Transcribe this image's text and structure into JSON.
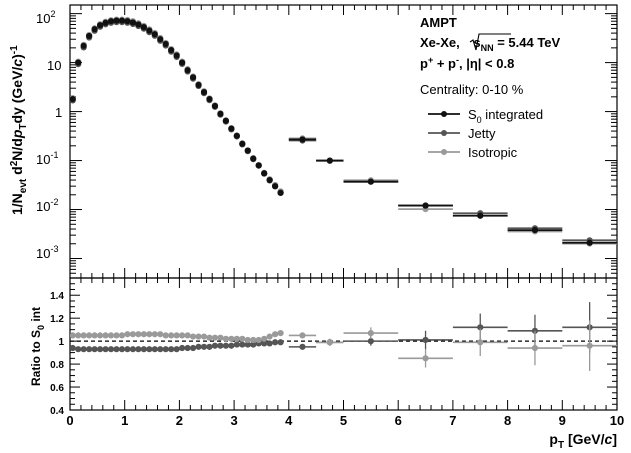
{
  "chart_data": [
    {
      "type": "scatter",
      "panel": "spectrum",
      "yscale": "log",
      "xlim": [
        0,
        10
      ],
      "ylim": [
        0.0004,
        150
      ],
      "ylabel": {
        "p1": "1/N",
        "s1": "evt",
        "p2": " d",
        "s2": "2",
        "p3": "N/d",
        "i1": "p",
        "s3": "T",
        "p4": "dy (GeV/",
        "i2": "c",
        "p5": ")",
        "s4": "-1"
      },
      "ytick_values": [
        0.001,
        0.01,
        0.1,
        1,
        10,
        100
      ],
      "yticks": {
        "v1": {
          "base": "10",
          "exp": "-3"
        },
        "v2": {
          "base": "10",
          "exp": "-2"
        },
        "v3": {
          "base": "10",
          "exp": "-1"
        },
        "v4": {
          "base": "1"
        },
        "v5": {
          "base": "10"
        },
        "v6": {
          "base": "10",
          "exp": "2"
        }
      },
      "annotations": {
        "model": "AMPT",
        "system": {
          "a": "Xe-Xe, ",
          "b": "s",
          "c": "NN",
          "d": " = 5.44 TeV"
        },
        "particles": {
          "a": "p",
          "b": "+",
          "c": " + p",
          "d": "-",
          "e": ", |η| < 0.8"
        },
        "centrality": "Centrality: 0-10 %"
      },
      "legend_position": "right",
      "legend": {
        "s0": {
          "a": "S",
          "b": "0",
          "c": " integrated"
        },
        "jetty": "Jetty",
        "iso": "Isotropic"
      },
      "colors": {
        "s0": "#111111",
        "jetty": "#555555",
        "iso": "#9a9a9a"
      },
      "x": [
        0.05,
        0.15,
        0.25,
        0.35,
        0.45,
        0.55,
        0.65,
        0.75,
        0.85,
        0.95,
        1.05,
        1.15,
        1.25,
        1.35,
        1.45,
        1.55,
        1.65,
        1.75,
        1.85,
        1.95,
        2.05,
        2.15,
        2.25,
        2.35,
        2.45,
        2.55,
        2.65,
        2.75,
        2.85,
        2.95,
        3.05,
        3.15,
        3.25,
        3.35,
        3.45,
        3.55,
        3.65,
        3.75,
        3.85,
        4.25,
        4.75,
        5.5,
        6.5,
        7.5,
        8.5,
        9.5
      ],
      "xerr": [
        0.05,
        0.05,
        0.05,
        0.05,
        0.05,
        0.05,
        0.05,
        0.05,
        0.05,
        0.05,
        0.05,
        0.05,
        0.05,
        0.05,
        0.05,
        0.05,
        0.05,
        0.05,
        0.05,
        0.05,
        0.05,
        0.05,
        0.05,
        0.05,
        0.05,
        0.05,
        0.05,
        0.05,
        0.05,
        0.05,
        0.05,
        0.05,
        0.05,
        0.05,
        0.05,
        0.05,
        0.05,
        0.05,
        0.05,
        0.25,
        0.25,
        0.5,
        0.5,
        0.5,
        0.5,
        0.5
      ],
      "y": [
        1.8,
        10,
        22,
        35,
        48,
        58,
        65,
        70,
        72,
        72,
        70,
        66,
        60,
        53,
        45,
        38,
        30,
        24,
        18,
        14,
        10,
        7,
        5,
        3.5,
        2.5,
        1.8,
        1.3,
        0.9,
        0.65,
        0.45,
        0.32,
        0.22,
        0.16,
        0.11,
        0.08,
        0.055,
        0.04,
        0.03,
        0.022,
        0.27,
        0.1,
        0.037,
        0.012,
        0.0075,
        0.0038,
        0.0021
      ]
    },
    {
      "type": "scatter",
      "panel": "ratio",
      "xlabel": {
        "a": "p",
        "b": "T",
        "c": " [GeV/",
        "d": "c",
        "e": "]"
      },
      "ylabel": {
        "a": "Ratio to S",
        "b": "0",
        "c": " int"
      },
      "xlim": [
        0,
        10
      ],
      "ylim": [
        0.4,
        1.55
      ],
      "reference_line": 1,
      "xticks": [
        "0",
        "1",
        "2",
        "3",
        "4",
        "5",
        "6",
        "7",
        "8",
        "9",
        "10"
      ],
      "yticks": [
        "0.4",
        "0.6",
        "0.8",
        "1",
        "1.2",
        "1.4"
      ],
      "series": [
        {
          "key": "jetty",
          "x": [
            0.05,
            0.15,
            0.25,
            0.35,
            0.45,
            0.55,
            0.65,
            0.75,
            0.85,
            0.95,
            1.05,
            1.15,
            1.25,
            1.35,
            1.45,
            1.55,
            1.65,
            1.75,
            1.85,
            1.95,
            2.05,
            2.15,
            2.25,
            2.35,
            2.45,
            2.55,
            2.65,
            2.75,
            2.85,
            2.95,
            3.05,
            3.15,
            3.25,
            3.35,
            3.45,
            3.55,
            3.65,
            3.75,
            3.85,
            4.25,
            4.75,
            5.5,
            6.5,
            7.5,
            8.5,
            9.5
          ],
          "xerr": [
            0.05,
            0.05,
            0.05,
            0.05,
            0.05,
            0.05,
            0.05,
            0.05,
            0.05,
            0.05,
            0.05,
            0.05,
            0.05,
            0.05,
            0.05,
            0.05,
            0.05,
            0.05,
            0.05,
            0.05,
            0.05,
            0.05,
            0.05,
            0.05,
            0.05,
            0.05,
            0.05,
            0.05,
            0.05,
            0.05,
            0.05,
            0.05,
            0.05,
            0.05,
            0.05,
            0.05,
            0.05,
            0.05,
            0.05,
            0.25,
            0.25,
            0.5,
            0.5,
            0.5,
            0.5,
            0.5
          ],
          "y": [
            0.94,
            0.93,
            0.93,
            0.93,
            0.93,
            0.93,
            0.93,
            0.93,
            0.93,
            0.93,
            0.93,
            0.93,
            0.93,
            0.93,
            0.93,
            0.93,
            0.93,
            0.93,
            0.93,
            0.93,
            0.94,
            0.94,
            0.94,
            0.95,
            0.95,
            0.95,
            0.96,
            0.96,
            0.96,
            0.96,
            0.97,
            0.97,
            0.97,
            0.97,
            0.98,
            0.98,
            0.98,
            0.99,
            0.99,
            0.95,
            0.99,
            1.0,
            1.01,
            1.12,
            1.09,
            1.12
          ],
          "yerr": [
            0.01,
            0.01,
            0.01,
            0.01,
            0.01,
            0.01,
            0.01,
            0.01,
            0.01,
            0.01,
            0.01,
            0.01,
            0.01,
            0.01,
            0.01,
            0.01,
            0.01,
            0.01,
            0.01,
            0.01,
            0.01,
            0.01,
            0.01,
            0.01,
            0.01,
            0.01,
            0.01,
            0.01,
            0.01,
            0.01,
            0.01,
            0.01,
            0.015,
            0.015,
            0.015,
            0.015,
            0.02,
            0.02,
            0.02,
            0.02,
            0.03,
            0.04,
            0.08,
            0.12,
            0.14,
            0.22
          ]
        },
        {
          "key": "iso",
          "x": [
            0.05,
            0.15,
            0.25,
            0.35,
            0.45,
            0.55,
            0.65,
            0.75,
            0.85,
            0.95,
            1.05,
            1.15,
            1.25,
            1.35,
            1.45,
            1.55,
            1.65,
            1.75,
            1.85,
            1.95,
            2.05,
            2.15,
            2.25,
            2.35,
            2.45,
            2.55,
            2.65,
            2.75,
            2.85,
            2.95,
            3.05,
            3.15,
            3.25,
            3.35,
            3.45,
            3.55,
            3.65,
            3.75,
            3.85,
            4.25,
            4.75,
            5.5,
            6.5,
            7.5,
            8.5,
            9.5
          ],
          "xerr": [
            0.05,
            0.05,
            0.05,
            0.05,
            0.05,
            0.05,
            0.05,
            0.05,
            0.05,
            0.05,
            0.05,
            0.05,
            0.05,
            0.05,
            0.05,
            0.05,
            0.05,
            0.05,
            0.05,
            0.05,
            0.05,
            0.05,
            0.05,
            0.05,
            0.05,
            0.05,
            0.05,
            0.05,
            0.05,
            0.05,
            0.05,
            0.05,
            0.05,
            0.05,
            0.05,
            0.05,
            0.05,
            0.05,
            0.05,
            0.25,
            0.25,
            0.5,
            0.5,
            0.5,
            0.5,
            0.5
          ],
          "y": [
            1.05,
            1.05,
            1.05,
            1.05,
            1.05,
            1.05,
            1.05,
            1.05,
            1.05,
            1.05,
            1.06,
            1.06,
            1.06,
            1.06,
            1.06,
            1.06,
            1.06,
            1.05,
            1.05,
            1.05,
            1.05,
            1.05,
            1.04,
            1.04,
            1.04,
            1.03,
            1.03,
            1.03,
            1.02,
            1.02,
            1.02,
            1.02,
            1.01,
            1.01,
            1.01,
            1.02,
            1.04,
            1.06,
            1.07,
            1.05,
            0.99,
            1.07,
            0.85,
            0.99,
            0.94,
            0.96
          ],
          "yerr": [
            0.01,
            0.01,
            0.01,
            0.01,
            0.01,
            0.01,
            0.01,
            0.01,
            0.01,
            0.01,
            0.01,
            0.01,
            0.01,
            0.01,
            0.01,
            0.01,
            0.01,
            0.01,
            0.01,
            0.01,
            0.01,
            0.01,
            0.01,
            0.01,
            0.01,
            0.01,
            0.01,
            0.01,
            0.01,
            0.01,
            0.01,
            0.01,
            0.015,
            0.015,
            0.015,
            0.015,
            0.02,
            0.02,
            0.02,
            0.02,
            0.03,
            0.05,
            0.08,
            0.12,
            0.15,
            0.22
          ]
        }
      ]
    }
  ]
}
